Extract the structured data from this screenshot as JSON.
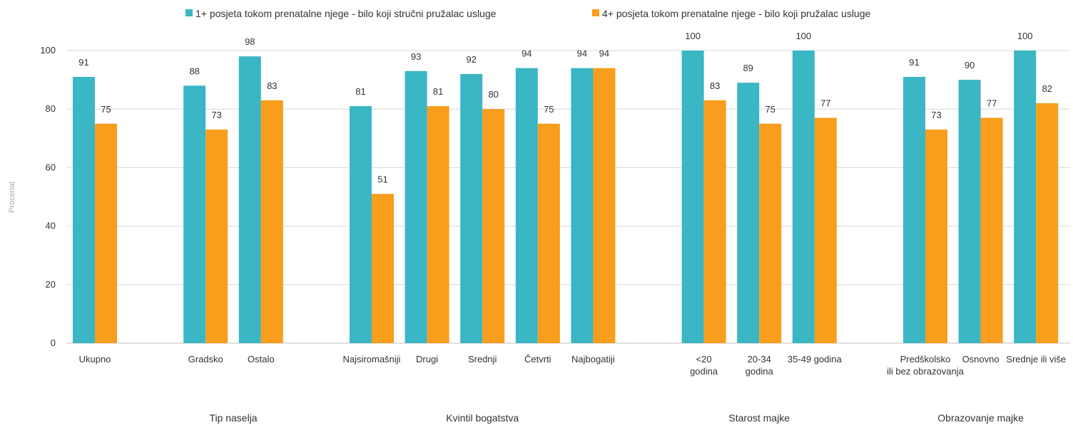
{
  "chart_data": {
    "type": "bar",
    "ylabel": "Procenat",
    "ylim": [
      0,
      100
    ],
    "yticks": [
      0,
      20,
      40,
      60,
      80,
      100
    ],
    "grid": true,
    "legend_position": "top",
    "series": [
      {
        "name": "1+ posjeta tokom prenatalne njege - bilo koji stručni pružalac usluge",
        "color": "#3ab6c4",
        "values": [
          91,
          88,
          98,
          81,
          93,
          92,
          94,
          94,
          100,
          89,
          100,
          91,
          90,
          100
        ]
      },
      {
        "name": "4+  posjeta tokom prenatalne njege - bilo koji pružalac usluge",
        "color": "#f99d1c",
        "values": [
          75,
          73,
          83,
          51,
          81,
          80,
          75,
          94,
          83,
          75,
          77,
          73,
          77,
          82
        ]
      }
    ],
    "categories": [
      [
        "Ukupno"
      ],
      [
        "Gradsko"
      ],
      [
        "Ostalo"
      ],
      [
        "Najsiromašniji"
      ],
      [
        "Drugi"
      ],
      [
        "Srednji"
      ],
      [
        "Četvrti"
      ],
      [
        "Najbogatiji"
      ],
      [
        "<20",
        "godina"
      ],
      [
        "20-34",
        "godina"
      ],
      [
        "35-49 godina"
      ],
      [
        "Predškolsko",
        "ili bez obrazovanja"
      ],
      [
        "Osnovno"
      ],
      [
        "Srednje ili više"
      ]
    ],
    "groups": [
      {
        "label": "Tip naselja"
      },
      {
        "label": "Kvintil bogatstva"
      },
      {
        "label": "Starost majke"
      },
      {
        "label": "Obrazovanje majke"
      }
    ]
  }
}
